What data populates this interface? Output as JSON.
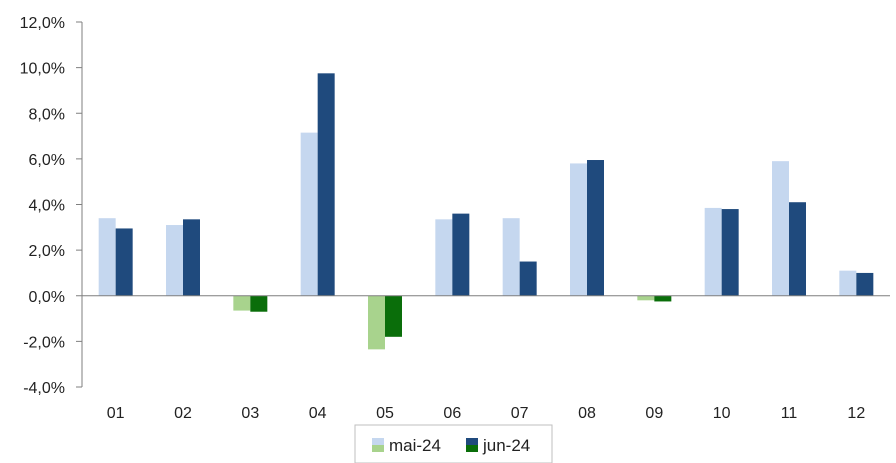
{
  "chart_data": {
    "type": "bar",
    "categories": [
      "01",
      "02",
      "03",
      "04",
      "05",
      "06",
      "07",
      "08",
      "09",
      "10",
      "11",
      "12"
    ],
    "series": [
      {
        "name": "mai-24",
        "values": [
          3.4,
          3.1,
          -0.65,
          7.15,
          -2.35,
          3.35,
          3.4,
          5.8,
          -0.2,
          3.85,
          5.9,
          1.1
        ],
        "color_positive": "#c5d7ef",
        "color_negative": "#a8d38d"
      },
      {
        "name": "jun-24",
        "values": [
          2.95,
          3.35,
          -0.7,
          9.75,
          -1.8,
          3.6,
          1.5,
          5.95,
          -0.25,
          3.8,
          4.1,
          1.0
        ],
        "color_positive": "#1f4a7d",
        "color_negative": "#0a6e0a"
      }
    ],
    "y_ticks": [
      "12,0%",
      "10,0%",
      "8,0%",
      "6,0%",
      "4,0%",
      "2,0%",
      "0,0%",
      "-2,0%",
      "-4,0%"
    ],
    "ylim": [
      -4,
      12
    ],
    "title": "",
    "xlabel": "",
    "ylabel": "",
    "grid": false,
    "legend_position": "bottom-center"
  }
}
